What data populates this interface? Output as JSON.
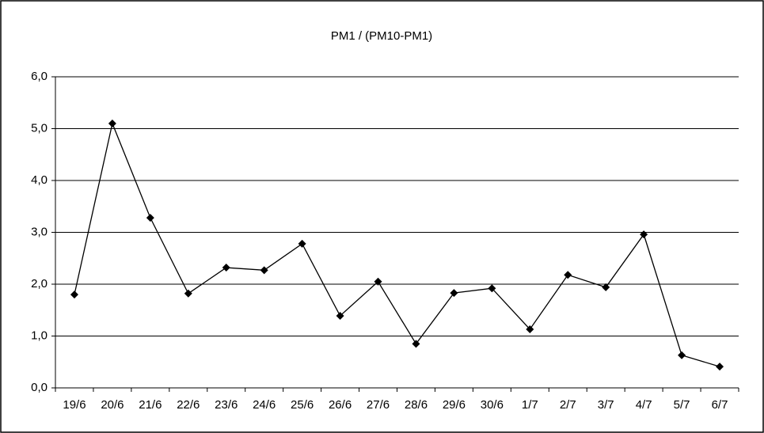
{
  "chart_data": {
    "type": "line",
    "title": "PM1 / (PM10-PM1)",
    "categories": [
      "19/6",
      "20/6",
      "21/6",
      "22/6",
      "23/6",
      "24/6",
      "25/6",
      "26/6",
      "27/6",
      "28/6",
      "29/6",
      "30/6",
      "1/7",
      "2/7",
      "3/7",
      "4/7",
      "5/7",
      "6/7"
    ],
    "series": [
      {
        "name": "PM1 / (PM10-PM1)",
        "color": "#000000",
        "values": [
          1.8,
          5.1,
          3.28,
          1.82,
          2.32,
          2.27,
          2.78,
          1.39,
          2.05,
          0.85,
          1.83,
          1.92,
          1.13,
          2.18,
          1.94,
          2.96,
          0.63,
          0.41
        ]
      }
    ],
    "ylim": [
      0,
      6
    ],
    "yticks": [
      {
        "value": 0,
        "label": "0,0"
      },
      {
        "value": 1,
        "label": "1,0"
      },
      {
        "value": 2,
        "label": "2,0"
      },
      {
        "value": 3,
        "label": "3,0"
      },
      {
        "value": 4,
        "label": "4,0"
      },
      {
        "value": 5,
        "label": "5,0"
      },
      {
        "value": 6,
        "label": "6,0"
      }
    ],
    "grid": true
  }
}
